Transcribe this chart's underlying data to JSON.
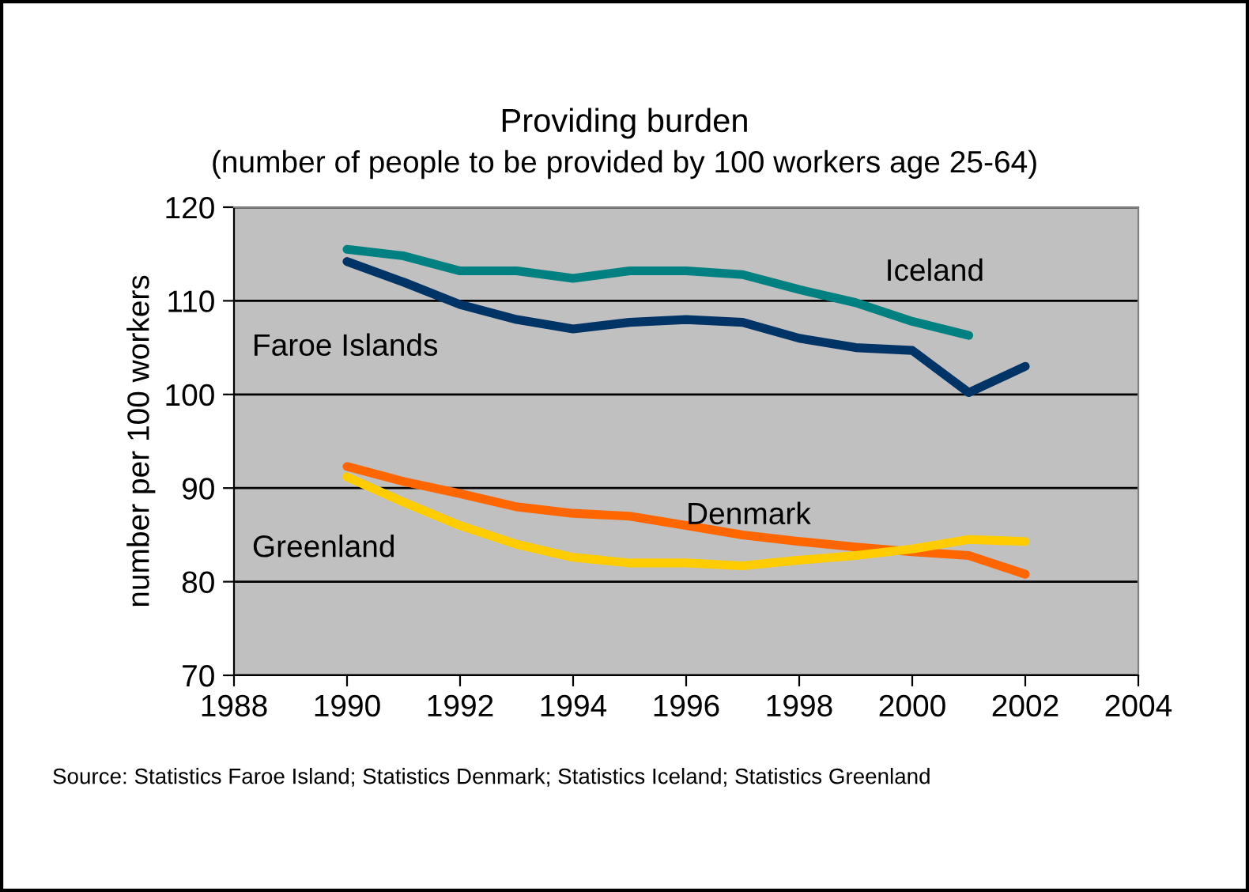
{
  "chart_data": {
    "type": "line",
    "title": "Providing burden",
    "subtitle": "(number of people to be provided by 100 workers age 25-64)",
    "ylabel": "number per 100 workers",
    "x": [
      1990,
      1991,
      1992,
      1993,
      1994,
      1995,
      1996,
      1997,
      1998,
      1999,
      2000,
      2001,
      2002
    ],
    "series": [
      {
        "name": "Iceland",
        "color": "#008080",
        "values": [
          115.5,
          114.8,
          113.2,
          113.2,
          112.4,
          113.2,
          113.2,
          112.8,
          111.2,
          109.8,
          107.8,
          106.3,
          null
        ]
      },
      {
        "name": "Faroe Islands",
        "color": "#003366",
        "values": [
          114.2,
          112.0,
          109.6,
          108.0,
          107.0,
          107.7,
          108.0,
          107.7,
          106.0,
          105.0,
          104.7,
          100.2,
          103.0
        ]
      },
      {
        "name": "Denmark",
        "color": "#ff6600",
        "values": [
          92.3,
          90.7,
          89.4,
          88.0,
          87.3,
          87.0,
          86.0,
          85.0,
          84.3,
          83.7,
          83.2,
          82.8,
          80.8
        ]
      },
      {
        "name": "Greenland",
        "color": "#ffcc00",
        "values": [
          91.2,
          88.5,
          86.0,
          84.0,
          82.6,
          82.0,
          82.0,
          81.7,
          82.3,
          82.8,
          83.5,
          84.5,
          84.3
        ]
      }
    ],
    "xlim": [
      1988,
      2004
    ],
    "xticks": [
      1988,
      1990,
      1992,
      1994,
      1996,
      1998,
      2000,
      2002,
      2004
    ],
    "ylim": [
      70,
      120
    ],
    "yticks": [
      70,
      80,
      90,
      100,
      110,
      120
    ],
    "grid": "y",
    "legend": false,
    "marker": "none",
    "line_style": "solid",
    "annotations": [
      "Source: Statistics Faroe Island; Statistics Denmark; Statistics Iceland; Statistics Greenland"
    ]
  }
}
